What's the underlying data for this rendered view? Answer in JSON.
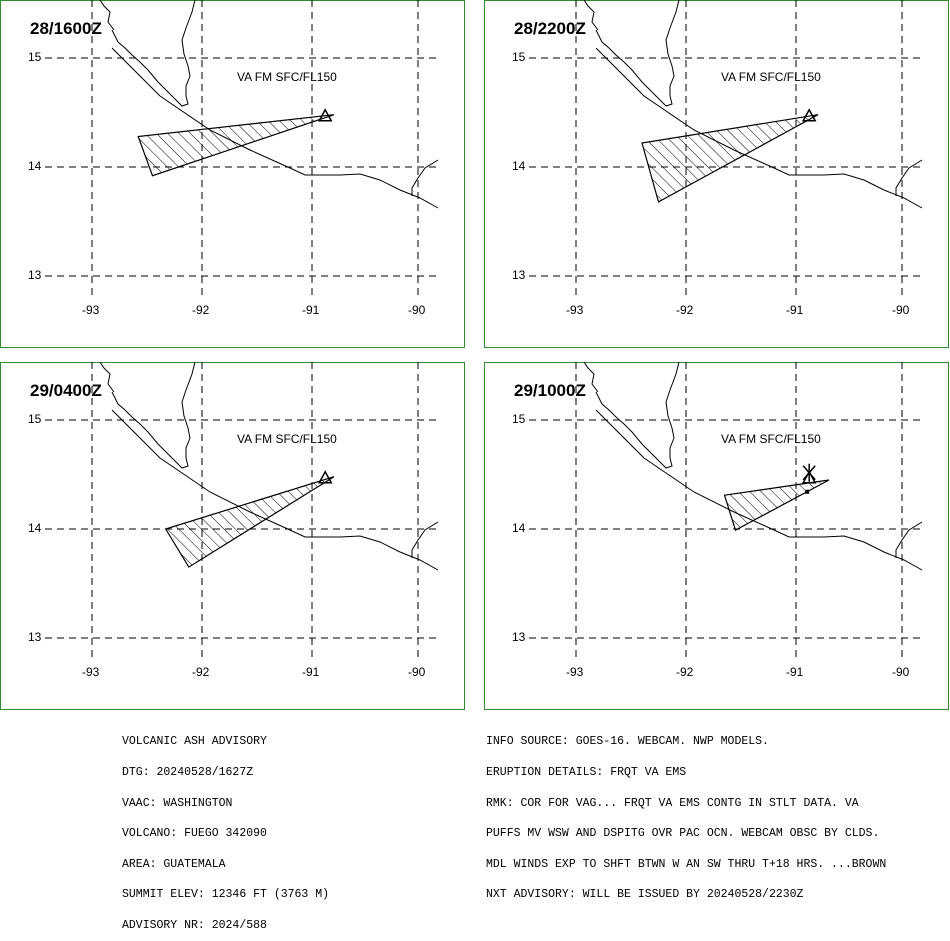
{
  "panels": [
    {
      "time": "28/1600Z",
      "label": "VA FM SFC/FL150",
      "polygon": [
        [
          -90.8,
          14.48
        ],
        [
          -92.58,
          14.28
        ],
        [
          -92.45,
          13.92
        ],
        [
          -90.8,
          14.48
        ]
      ]
    },
    {
      "time": "28/2200Z",
      "label": "VA FM SFC/FL150",
      "polygon": [
        [
          -90.8,
          14.48
        ],
        [
          -92.4,
          14.22
        ],
        [
          -92.25,
          13.68
        ],
        [
          -90.8,
          14.48
        ]
      ]
    },
    {
      "time": "29/0400Z",
      "label": "VA FM SFC/FL150",
      "polygon": [
        [
          -90.8,
          14.48
        ],
        [
          -92.33,
          14.0
        ],
        [
          -92.12,
          13.65
        ],
        [
          -90.8,
          14.48
        ]
      ]
    },
    {
      "time": "29/1000Z",
      "label": "VA FM SFC/FL150",
      "polygon": [
        [
          -90.7,
          14.45
        ],
        [
          -91.65,
          14.31
        ],
        [
          -91.55,
          13.99
        ],
        [
          -90.7,
          14.45
        ]
      ]
    }
  ],
  "axes": {
    "x_ticks": [
      "-93",
      "-92",
      "-91",
      "-90"
    ],
    "y_ticks": [
      "15",
      "14",
      "13"
    ],
    "x_values": [
      -93,
      -92,
      -91,
      -90
    ],
    "y_values": [
      15,
      14,
      13
    ]
  },
  "colors": {
    "frame": "#2e8b2e",
    "grid": "#000000",
    "hatch": "#000000"
  },
  "advisory_left": [
    "VOLCANIC ASH ADVISORY",
    "DTG: 20240528/1627Z",
    "VAAC: WASHINGTON",
    "VOLCANO: FUEGO 342090",
    "AREA: GUATEMALA",
    "SUMMIT ELEV: 12346 FT (3763 M)",
    "ADVISORY NR: 2024/588"
  ],
  "advisory_right": [
    "INFO SOURCE: GOES-16. WEBCAM. NWP MODELS.",
    "ERUPTION DETAILS: FRQT VA EMS",
    "RMK: COR FOR VAG... FRQT VA EMS CONTG IN STLT DATA. VA",
    "PUFFS MV WSW AND DSPITG OVR PAC OCN. WEBCAM OBSC BY CLDS.",
    "MDL WINDS EXP TO SHFT BTWN W AN SW THRU T+18 HRS. ...BROWN",
    "NXT ADVISORY: WILL BE ISSUED BY 20240528/2230Z"
  ]
}
